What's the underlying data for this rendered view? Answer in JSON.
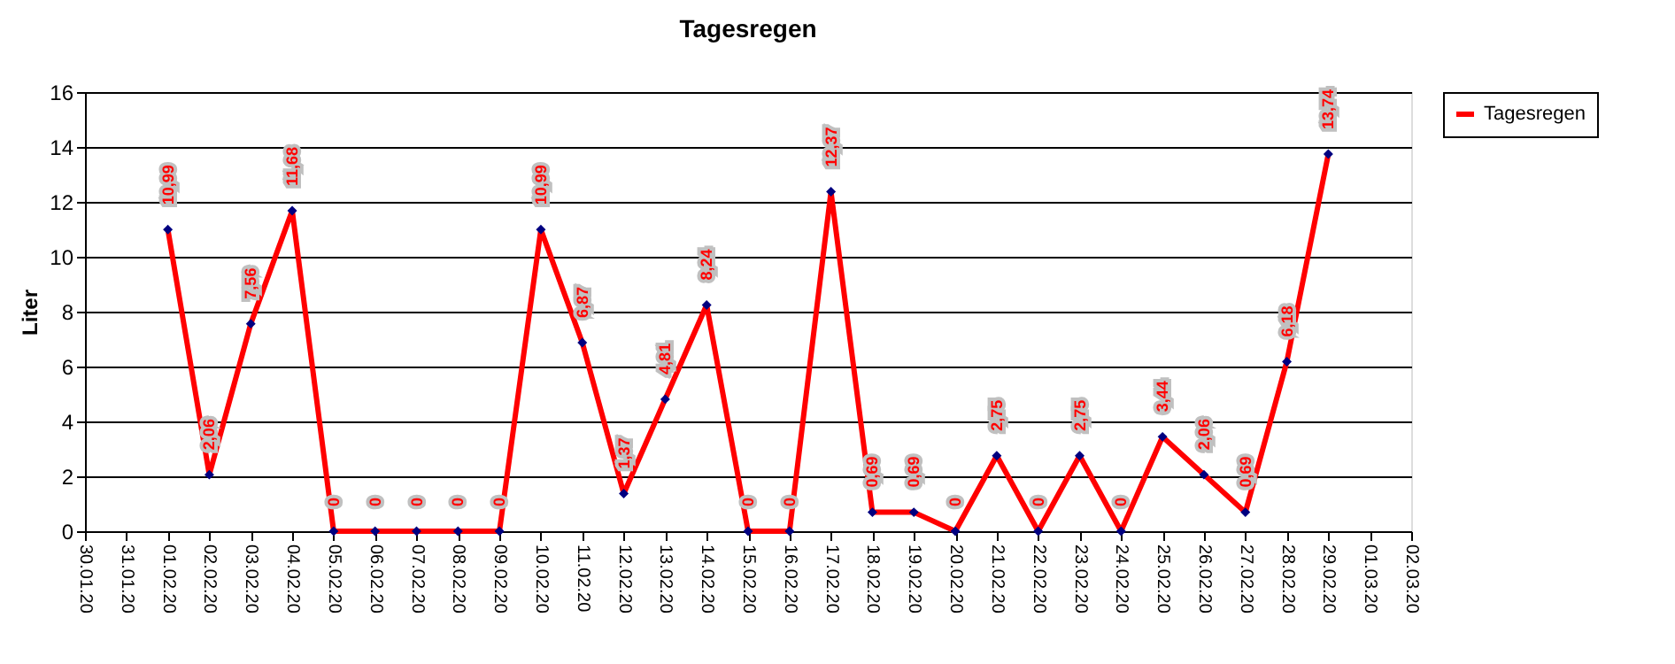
{
  "chart_data": {
    "type": "line",
    "title": "Tagesregen",
    "ylabel": "Liter",
    "categories": [
      "30.01.20",
      "31.01.20",
      "01.02.20",
      "02.02.20",
      "03.02.20",
      "04.02.20",
      "05.02.20",
      "06.02.20",
      "07.02.20",
      "08.02.20",
      "09.02.20",
      "10.02.20",
      "11.02.20",
      "12.02.20",
      "13.02.20",
      "14.02.20",
      "15.02.20",
      "16.02.20",
      "17.02.20",
      "18.02.20",
      "19.02.20",
      "20.02.20",
      "21.02.20",
      "22.02.20",
      "23.02.20",
      "24.02.20",
      "25.02.20",
      "26.02.20",
      "27.02.20",
      "28.02.20",
      "29.02.20",
      "01.03.20",
      "02.03.20"
    ],
    "series": [
      {
        "name": "Tagesregen",
        "color": "#ff0000",
        "values": [
          null,
          null,
          10.99,
          2.06,
          7.56,
          11.68,
          0,
          0,
          0,
          0,
          0,
          10.99,
          6.87,
          1.37,
          4.81,
          8.24,
          0,
          0,
          12.37,
          0.69,
          0.69,
          0,
          2.75,
          0,
          2.75,
          0,
          3.44,
          2.06,
          0.69,
          6.18,
          13.74,
          null,
          null
        ],
        "value_labels": [
          null,
          null,
          "10,99",
          "2,06",
          "7,56",
          "11,68",
          "0",
          "0",
          "0",
          "0",
          "0",
          "10,99",
          "6,87",
          "1,37",
          "4,81",
          "8,24",
          "0",
          "0",
          "12,37",
          "0,69",
          "0,69",
          "0",
          "2,75",
          "0",
          "2,75",
          "0",
          "3,44",
          "2,06",
          "0,69",
          "6,18",
          "13,74",
          null,
          null
        ]
      }
    ],
    "ylim": [
      0,
      16
    ],
    "yticks": [
      0,
      2,
      4,
      6,
      8,
      10,
      12,
      14,
      16
    ],
    "grid": "y",
    "legend": "right",
    "marker": "diamond",
    "line_style": "solid"
  }
}
